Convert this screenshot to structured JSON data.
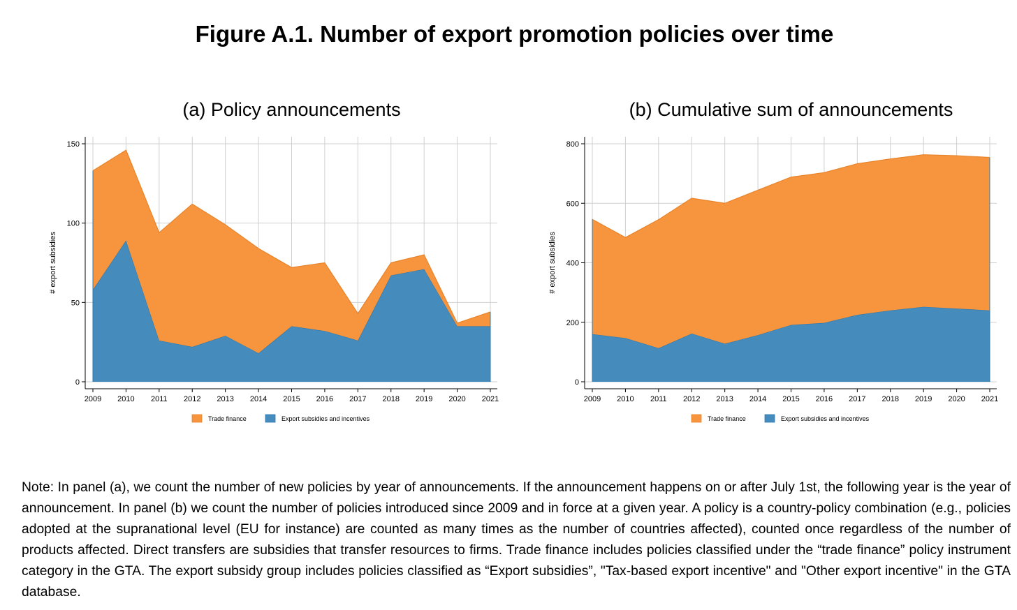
{
  "figure_title": "Figure A.1. Number of export promotion policies over time",
  "note": "Note: In panel (a), we count the number of new policies by year of announcements. If the announcement happens on or after July 1st, the following year is the year of announcement. In panel (b) we count the number of policies introduced since 2009 and in force at a given year. A policy is a country-policy combination (e.g., policies adopted at the supranational level (EU for instance) are counted as many times as the number of countries affected), counted once regardless of the number of products affected. Direct transfers are subsidies that transfer resources to firms. Trade finance includes policies classified under the “trade finance” policy instrument category in the GTA. The export subsidy group includes policies classified as “Export subsidies”, \"Tax-based export incentive\" and \"Other export incentive\" in the GTA database.",
  "colors": {
    "trade_finance": "#f6953d",
    "export_subsidies": "#458cbd",
    "grid": "#cfcfcf"
  },
  "chart_data": [
    {
      "type": "area",
      "stacked": true,
      "title": "(a) Policy announcements",
      "xlabel": "",
      "ylabel": "# export subsidies",
      "x": [
        2009,
        2010,
        2011,
        2012,
        2013,
        2014,
        2015,
        2016,
        2017,
        2018,
        2019,
        2020,
        2021
      ],
      "ylim": [
        0,
        150
      ],
      "yticks": [
        0,
        50,
        100,
        150
      ],
      "grid": true,
      "legend_position": "bottom",
      "series": [
        {
          "name": "Export subsidies and incentives",
          "color": "#458cbd",
          "values": [
            58,
            89,
            26,
            22,
            29,
            18,
            35,
            32,
            26,
            67,
            71,
            35,
            35
          ]
        },
        {
          "name": "Trade finance",
          "color": "#f6953d",
          "values": [
            75,
            57,
            68,
            90,
            70,
            66,
            37,
            43,
            17,
            8,
            9,
            2,
            9
          ]
        }
      ],
      "legend": [
        "Trade finance",
        "Export subsidies and incentives"
      ]
    },
    {
      "type": "area",
      "stacked": true,
      "title": "(b) Cumulative sum of announcements",
      "xlabel": "",
      "ylabel": "# export subsidies",
      "x": [
        2009,
        2010,
        2011,
        2012,
        2013,
        2014,
        2015,
        2016,
        2017,
        2018,
        2019,
        2020,
        2021
      ],
      "ylim": [
        0,
        800
      ],
      "yticks": [
        0,
        200,
        400,
        600,
        800
      ],
      "grid": true,
      "legend_position": "bottom",
      "series": [
        {
          "name": "Export subsidies and incentives",
          "color": "#458cbd",
          "values": [
            160,
            147,
            113,
            162,
            128,
            157,
            191,
            198,
            225,
            240,
            252,
            246,
            240
          ]
        },
        {
          "name": "Trade finance",
          "color": "#f6953d",
          "values": [
            386,
            338,
            432,
            455,
            472,
            487,
            497,
            505,
            508,
            509,
            511,
            514,
            514
          ]
        }
      ],
      "legend": [
        "Trade finance",
        "Export subsidies and incentives"
      ]
    }
  ]
}
